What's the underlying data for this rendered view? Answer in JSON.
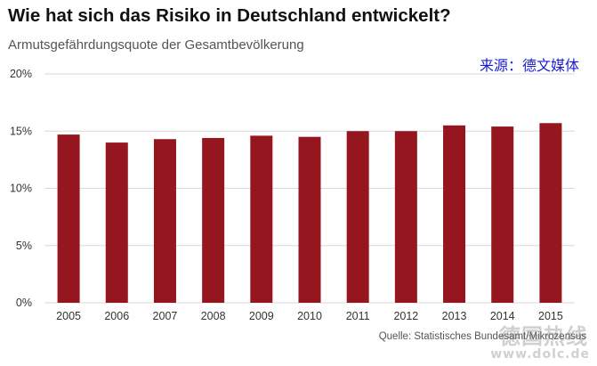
{
  "header": {
    "title": "Wie hat sich das Risiko in Deutschland entwickelt?",
    "subtitle": "Armutsgefährdungsquote der Gesamtbevölkerung",
    "source_cn": "来源：德文媒体"
  },
  "footer": {
    "source": "Quelle: Statistisches Bundesamt/Mikrozensus",
    "watermark": "德国热线",
    "watermark_url": "www.dolc.de"
  },
  "colors": {
    "bar": "#961620",
    "grid": "#d9d9d9",
    "axis_text": "#333333"
  },
  "chart_data": {
    "type": "bar",
    "title": "Wie hat sich das Risiko in Deutschland entwickelt?",
    "subtitle": "Armutsgefährdungsquote der Gesamtbevölkerung",
    "xlabel": "",
    "ylabel": "",
    "categories": [
      "2005",
      "2006",
      "2007",
      "2008",
      "2009",
      "2010",
      "2011",
      "2012",
      "2013",
      "2014",
      "2015"
    ],
    "values": [
      14.7,
      14.0,
      14.3,
      14.4,
      14.6,
      14.5,
      15.0,
      15.0,
      15.5,
      15.4,
      15.7
    ],
    "ylim": [
      0,
      20
    ],
    "yticks": [
      0,
      5,
      10,
      15,
      20
    ],
    "ytick_labels": [
      "0%",
      "5%",
      "10%",
      "15%",
      "20%"
    ],
    "grid": true,
    "legend": "none"
  }
}
